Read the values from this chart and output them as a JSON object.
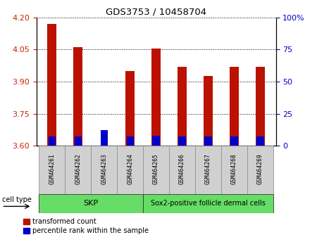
{
  "title": "GDS3753 / 10458704",
  "samples": [
    "GSM464261",
    "GSM464262",
    "GSM464263",
    "GSM464264",
    "GSM464265",
    "GSM464266",
    "GSM464267",
    "GSM464268",
    "GSM464269"
  ],
  "transformed_counts": [
    4.17,
    4.06,
    3.6,
    3.95,
    4.055,
    3.97,
    3.925,
    3.97,
    3.97
  ],
  "percentile_ranks": [
    7,
    7,
    12,
    7,
    8,
    7,
    7,
    7,
    7
  ],
  "ylim_left": [
    3.6,
    4.2
  ],
  "ylim_right": [
    0,
    100
  ],
  "yticks_left": [
    3.6,
    3.75,
    3.9,
    4.05,
    4.2
  ],
  "yticks_right": [
    0,
    25,
    50,
    75,
    100
  ],
  "ytick_labels_right": [
    "0",
    "25",
    "50",
    "75",
    "100%"
  ],
  "skp_range": [
    0,
    3
  ],
  "sox2_range": [
    4,
    8
  ],
  "bar_color_red": "#bb1100",
  "bar_color_blue": "#0000cc",
  "bar_width": 0.35,
  "blue_bar_width": 0.28,
  "plot_bg": "#ffffff",
  "left_tick_color": "#cc2200",
  "right_tick_color": "#0000cc",
  "cell_type_label": "cell type",
  "skp_label": "SKP",
  "sox2_label": "Sox2-positive follicle dermal cells",
  "legend_label_red": "transformed count",
  "legend_label_blue": "percentile rank within the sample",
  "baseline": 3.6,
  "label_bg": "#d0d0d0",
  "cell_bg": "#66dd66"
}
